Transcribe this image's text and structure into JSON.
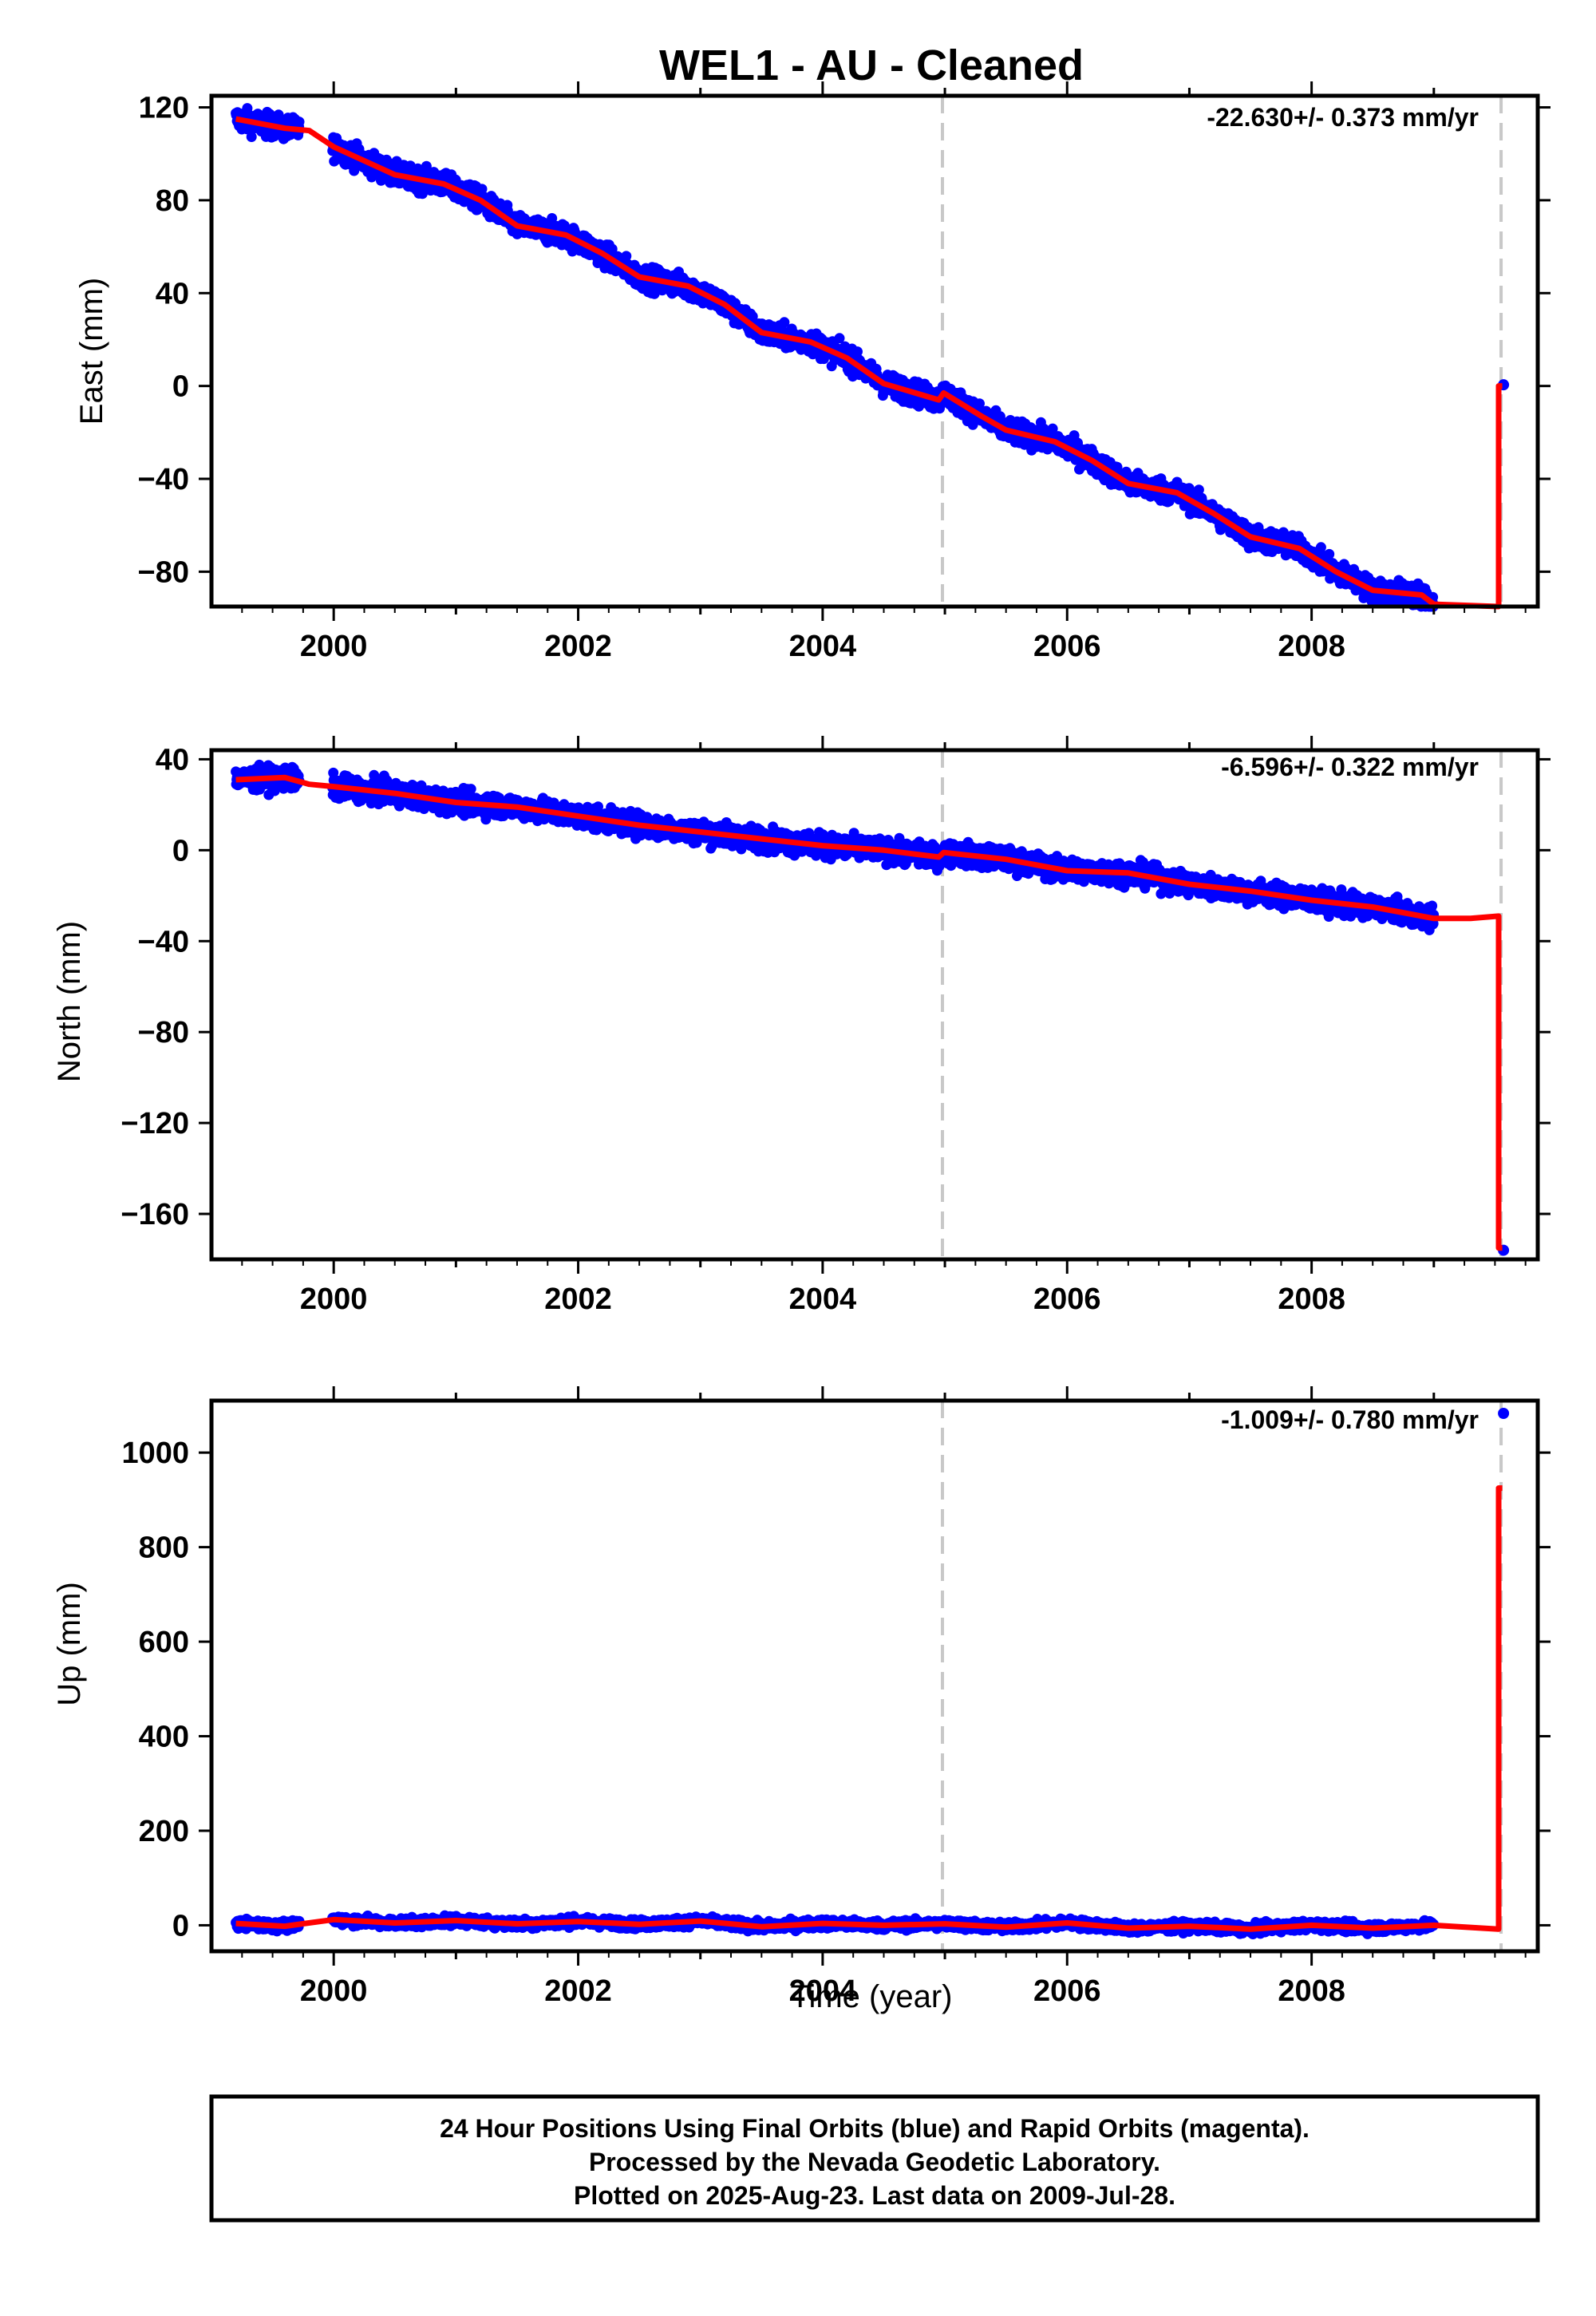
{
  "chart_data": {
    "title": "WEL1  - AU - Cleaned",
    "xlabel": "Time (year)",
    "xlim": [
      1999.0,
      2009.85
    ],
    "x_ticks": [
      2000,
      2002,
      2004,
      2006,
      2008
    ],
    "break_lines": [
      2004.98,
      2009.55
    ],
    "colors": {
      "data": "#0000ff",
      "model": "#ff0000",
      "break": "#c8c8c8",
      "axis": "#000000"
    },
    "panels": [
      {
        "type": "scatter",
        "component": "East",
        "ylabel": "East (mm)",
        "ylim": [
          -95,
          125
        ],
        "y_ticks": [
          120,
          80,
          40,
          0,
          -40,
          -80
        ],
        "rate_label": "-22.630+/- 0.373 mm/yr",
        "data_range": [
          1999.2,
          2009.0
        ],
        "noise": 3.5,
        "model_curve": [
          [
            1999.2,
            115
          ],
          [
            1999.6,
            111
          ],
          [
            1999.8,
            110
          ],
          [
            2000.0,
            103
          ],
          [
            2000.5,
            91
          ],
          [
            2000.9,
            87
          ],
          [
            2001.2,
            80
          ],
          [
            2001.5,
            69
          ],
          [
            2001.9,
            65
          ],
          [
            2002.2,
            57
          ],
          [
            2002.5,
            47
          ],
          [
            2002.9,
            43
          ],
          [
            2003.2,
            35
          ],
          [
            2003.5,
            23
          ],
          [
            2003.9,
            19
          ],
          [
            2004.2,
            12
          ],
          [
            2004.5,
            1
          ],
          [
            2004.95,
            -6
          ],
          [
            2004.99,
            -3
          ],
          [
            2005.3,
            -13
          ],
          [
            2005.5,
            -19
          ],
          [
            2005.9,
            -24
          ],
          [
            2006.2,
            -32
          ],
          [
            2006.5,
            -42
          ],
          [
            2006.9,
            -46
          ],
          [
            2007.2,
            -55
          ],
          [
            2007.5,
            -65
          ],
          [
            2007.9,
            -70
          ],
          [
            2008.2,
            -80
          ],
          [
            2008.5,
            -88
          ],
          [
            2008.9,
            -90
          ],
          [
            2009.0,
            -94
          ]
        ],
        "tail": [
          [
            2009.0,
            -94
          ],
          [
            2009.53,
            -95
          ],
          [
            2009.53,
            0
          ],
          [
            2009.56,
            0
          ]
        ],
        "extra_points": [
          [
            2009.57,
            0.5
          ]
        ]
      },
      {
        "type": "scatter",
        "component": "North",
        "ylabel": "North (mm)",
        "ylim": [
          -180,
          44
        ],
        "y_ticks": [
          40,
          0,
          -40,
          -80,
          -120,
          -160
        ],
        "rate_label": "-6.596+/- 0.322 mm/yr",
        "data_range": [
          1999.2,
          2009.0
        ],
        "noise": 3.5,
        "model_curve": [
          [
            1999.2,
            31
          ],
          [
            1999.6,
            32
          ],
          [
            1999.8,
            29
          ],
          [
            2000.0,
            28
          ],
          [
            2000.5,
            25
          ],
          [
            2001.0,
            21
          ],
          [
            2001.5,
            19
          ],
          [
            2002.0,
            15
          ],
          [
            2002.5,
            11
          ],
          [
            2003.0,
            8
          ],
          [
            2003.5,
            5
          ],
          [
            2004.0,
            2
          ],
          [
            2004.5,
            0
          ],
          [
            2004.95,
            -3
          ],
          [
            2004.99,
            -1
          ],
          [
            2005.5,
            -4
          ],
          [
            2006.0,
            -9
          ],
          [
            2006.5,
            -10
          ],
          [
            2007.0,
            -15
          ],
          [
            2007.5,
            -18
          ],
          [
            2008.0,
            -22
          ],
          [
            2008.5,
            -25
          ],
          [
            2009.0,
            -30
          ]
        ],
        "tail": [
          [
            2009.0,
            -30
          ],
          [
            2009.3,
            -30
          ],
          [
            2009.53,
            -29
          ],
          [
            2009.53,
            -175
          ],
          [
            2009.56,
            -175
          ]
        ],
        "extra_points": [
          [
            2009.57,
            -176
          ]
        ]
      },
      {
        "type": "scatter",
        "component": "Up",
        "ylabel": "Up (mm)",
        "ylim": [
          -55,
          1110
        ],
        "y_ticks": [
          1000,
          800,
          600,
          400,
          200,
          0
        ],
        "rate_label": "-1.009+/- 0.780 mm/yr",
        "data_range": [
          1999.2,
          2009.0
        ],
        "noise": 7,
        "model_curve": [
          [
            1999.2,
            4
          ],
          [
            1999.6,
            -2
          ],
          [
            2000.0,
            12
          ],
          [
            2000.5,
            5
          ],
          [
            2001.0,
            10
          ],
          [
            2001.5,
            3
          ],
          [
            2002.0,
            8
          ],
          [
            2002.5,
            2
          ],
          [
            2003.0,
            9
          ],
          [
            2003.5,
            -3
          ],
          [
            2004.0,
            4
          ],
          [
            2004.5,
            0
          ],
          [
            2005.0,
            3
          ],
          [
            2005.5,
            -4
          ],
          [
            2006.0,
            5
          ],
          [
            2006.5,
            -6
          ],
          [
            2007.0,
            -2
          ],
          [
            2007.5,
            -8
          ],
          [
            2008.0,
            0
          ],
          [
            2008.5,
            -6
          ],
          [
            2009.0,
            0
          ]
        ],
        "tail": [
          [
            2009.0,
            0
          ],
          [
            2009.53,
            -8
          ],
          [
            2009.53,
            925
          ],
          [
            2009.56,
            925
          ]
        ],
        "extra_points": [
          [
            2009.57,
            1083
          ]
        ]
      }
    ]
  },
  "footer": {
    "line1": "24 Hour Positions Using Final Orbits (blue) and Rapid Orbits (magenta).",
    "line2": "Processed by the Nevada Geodetic Laboratory.",
    "line3": "Plotted on 2025-Aug-23. Last data on 2009-Jul-28."
  }
}
